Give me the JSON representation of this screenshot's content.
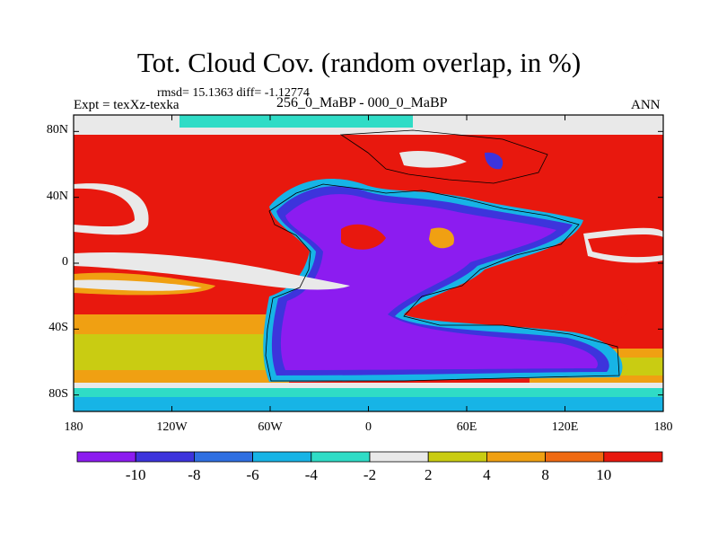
{
  "figure": {
    "title": "Tot. Cloud Cov. (random overlap, in %)",
    "stats": "rmsd= 15.1363 diff= -1.12774",
    "expt": "Expt = texXz-texka",
    "subtitle": "256_0_MaBP - 000_0_MaBP",
    "season": "ANN"
  },
  "axes": {
    "lon_range": [
      -180,
      180
    ],
    "lat_range": [
      -90,
      90
    ],
    "x_ticks": [
      {
        "value": -180,
        "label": "180"
      },
      {
        "value": -120,
        "label": "120W"
      },
      {
        "value": -60,
        "label": "60W"
      },
      {
        "value": 0,
        "label": "0"
      },
      {
        "value": 60,
        "label": "60E"
      },
      {
        "value": 120,
        "label": "120E"
      },
      {
        "value": 180,
        "label": "180"
      }
    ],
    "y_ticks": [
      {
        "value": 80,
        "label": "80N"
      },
      {
        "value": 40,
        "label": "40N"
      },
      {
        "value": 0,
        "label": "0"
      },
      {
        "value": -40,
        "label": "40S"
      },
      {
        "value": -80,
        "label": "80S"
      }
    ]
  },
  "colorbar": {
    "levels": [
      -10,
      -8,
      -6,
      -4,
      -2,
      2,
      4,
      8,
      10
    ],
    "labels": [
      "-10",
      "-8",
      "-6",
      "-4",
      "-2",
      "2",
      "4",
      "8",
      "10"
    ],
    "colors": [
      "#8c1cf0",
      "#3d34dc",
      "#2f6fe2",
      "#17b4e6",
      "#2fdcc6",
      "#e9e9e9",
      "#c9cc12",
      "#f0a012",
      "#f06a12",
      "#e8180e"
    ]
  },
  "colors": {
    "neg_strong": "#8c1cf0",
    "pos_strong": "#e8180e",
    "neutral": "#e9e9e9"
  }
}
